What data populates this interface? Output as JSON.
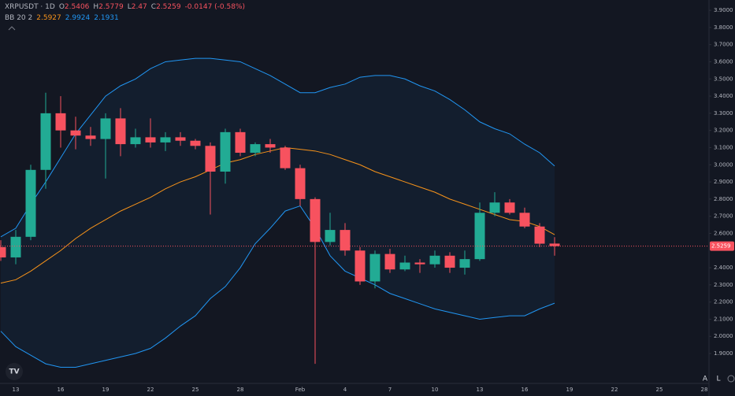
{
  "chart_data": {
    "type": "candlestick",
    "symbol": "XRPUSDT · 1D",
    "ohlc_labels": [
      "O",
      "H",
      "L",
      "C"
    ],
    "change_text": "-0.0147 (-0.58%)",
    "categories": [
      null,
      "13",
      null,
      null,
      "16",
      null,
      null,
      "19",
      null,
      null,
      "22",
      null,
      null,
      "25",
      null,
      null,
      "28",
      null,
      null,
      null,
      "Feb",
      null,
      null,
      "4",
      null,
      null,
      "7",
      null,
      null,
      "10",
      null,
      null,
      "13",
      null,
      null,
      "16",
      null,
      null,
      "19",
      null,
      null,
      "22",
      null,
      null,
      "25",
      null,
      null,
      "28"
    ],
    "open": [
      2.52,
      2.46,
      2.58,
      2.97,
      3.3,
      3.2,
      3.17,
      3.15,
      3.27,
      3.12,
      3.16,
      3.13,
      3.16,
      3.14,
      3.11,
      2.96,
      3.19,
      3.07,
      3.12,
      3.1,
      2.98,
      2.8,
      2.55,
      2.62,
      2.5,
      2.32,
      2.48,
      2.39,
      2.43,
      2.42,
      2.47,
      2.4,
      2.45,
      2.72,
      2.78,
      2.72,
      2.64,
      2.5406,
      null,
      null,
      null,
      null,
      null,
      null,
      null,
      null,
      null,
      null
    ],
    "high": [
      2.56,
      2.62,
      3.0,
      3.42,
      3.4,
      3.28,
      3.22,
      3.3,
      3.33,
      3.21,
      3.27,
      3.19,
      3.19,
      3.15,
      3.13,
      3.21,
      3.21,
      3.13,
      3.15,
      3.11,
      3.0,
      2.81,
      2.72,
      2.66,
      2.52,
      2.5,
      2.51,
      2.47,
      2.45,
      2.5,
      2.49,
      2.5,
      2.78,
      2.84,
      2.8,
      2.75,
      2.66,
      2.5779,
      null,
      null,
      null,
      null,
      null,
      null,
      null,
      null,
      null,
      null
    ],
    "low": [
      2.44,
      2.42,
      2.56,
      2.86,
      3.1,
      3.09,
      3.11,
      2.92,
      3.05,
      3.1,
      3.1,
      3.08,
      3.11,
      3.09,
      2.71,
      2.89,
      3.05,
      3.05,
      3.07,
      2.97,
      2.76,
      1.84,
      2.53,
      2.47,
      2.3,
      2.28,
      2.37,
      2.38,
      2.37,
      2.4,
      2.37,
      2.36,
      2.44,
      2.7,
      2.71,
      2.63,
      2.52,
      2.47,
      null,
      null,
      null,
      null,
      null,
      null,
      null,
      null,
      null,
      null
    ],
    "close": [
      2.46,
      2.58,
      2.97,
      3.3,
      3.2,
      3.17,
      3.15,
      3.27,
      3.12,
      3.16,
      3.13,
      3.16,
      3.14,
      3.11,
      2.96,
      3.19,
      3.07,
      3.12,
      3.1,
      2.98,
      2.8,
      2.55,
      2.62,
      2.5,
      2.32,
      2.48,
      2.39,
      2.43,
      2.42,
      2.47,
      2.4,
      2.45,
      2.72,
      2.78,
      2.72,
      2.64,
      2.54,
      2.5259,
      null,
      null,
      null,
      null,
      null,
      null,
      null,
      null,
      null,
      null
    ],
    "up_color": "#22ab94",
    "down_color": "#f7525f",
    "bollinger": {
      "label": "BB 20 2",
      "basis": [
        2.31,
        2.33,
        2.38,
        2.44,
        2.5,
        2.57,
        2.63,
        2.68,
        2.73,
        2.77,
        2.81,
        2.86,
        2.9,
        2.93,
        2.97,
        3.01,
        3.03,
        3.06,
        3.08,
        3.1,
        3.09,
        3.08,
        3.06,
        3.03,
        3.0,
        2.96,
        2.93,
        2.9,
        2.87,
        2.84,
        2.8,
        2.77,
        2.74,
        2.71,
        2.68,
        2.67,
        2.64,
        2.5927,
        null,
        null,
        null,
        null,
        null,
        null,
        null,
        null,
        null,
        null
      ],
      "upper": [
        2.58,
        2.63,
        2.77,
        2.9,
        3.04,
        3.18,
        3.29,
        3.4,
        3.46,
        3.5,
        3.56,
        3.6,
        3.61,
        3.62,
        3.62,
        3.61,
        3.6,
        3.56,
        3.52,
        3.47,
        3.42,
        3.42,
        3.45,
        3.47,
        3.51,
        3.52,
        3.52,
        3.5,
        3.46,
        3.43,
        3.38,
        3.32,
        3.25,
        3.21,
        3.18,
        3.12,
        3.07,
        2.9924,
        null,
        null,
        null,
        null,
        null,
        null,
        null,
        null,
        null,
        null
      ],
      "lower": [
        2.03,
        1.94,
        1.89,
        1.84,
        1.82,
        1.82,
        1.84,
        1.86,
        1.88,
        1.9,
        1.93,
        1.99,
        2.06,
        2.12,
        2.22,
        2.29,
        2.4,
        2.54,
        2.63,
        2.73,
        2.76,
        2.63,
        2.47,
        2.38,
        2.34,
        2.3,
        2.25,
        2.22,
        2.19,
        2.16,
        2.14,
        2.12,
        2.1,
        2.11,
        2.12,
        2.12,
        2.16,
        2.1931,
        null,
        null,
        null,
        null,
        null,
        null,
        null,
        null,
        null,
        null
      ],
      "basis_color": "#f7931a",
      "band_color": "#2196f3"
    },
    "ylim": [
      1.735,
      3.96
    ],
    "yticks": [
      {
        "value": 1.9,
        "label": "1.9000"
      },
      {
        "value": 2.0,
        "label": "2.0000"
      },
      {
        "value": 2.1,
        "label": "2.1000"
      },
      {
        "value": 2.2,
        "label": "2.2000"
      },
      {
        "value": 2.3,
        "label": "2.3000"
      },
      {
        "value": 2.4,
        "label": "2.4000"
      },
      {
        "value": 2.6,
        "label": "2.6000"
      },
      {
        "value": 2.7,
        "label": "2.7000"
      },
      {
        "value": 2.8,
        "label": "2.8000"
      },
      {
        "value": 2.9,
        "label": "2.9000"
      },
      {
        "value": 3.0,
        "label": "3.0000"
      },
      {
        "value": 3.1,
        "label": "3.1000"
      },
      {
        "value": 3.2,
        "label": "3.2000"
      },
      {
        "value": 3.3,
        "label": "3.3000"
      },
      {
        "value": 3.4,
        "label": "3.4000"
      },
      {
        "value": 3.5,
        "label": "3.5000"
      },
      {
        "value": 3.6,
        "label": "3.6000"
      },
      {
        "value": 3.7,
        "label": "3.7000"
      },
      {
        "value": 3.8,
        "label": "3.8000"
      },
      {
        "value": 3.9,
        "label": "3.9000"
      }
    ],
    "scale_buttons": [
      "A",
      "L"
    ]
  }
}
